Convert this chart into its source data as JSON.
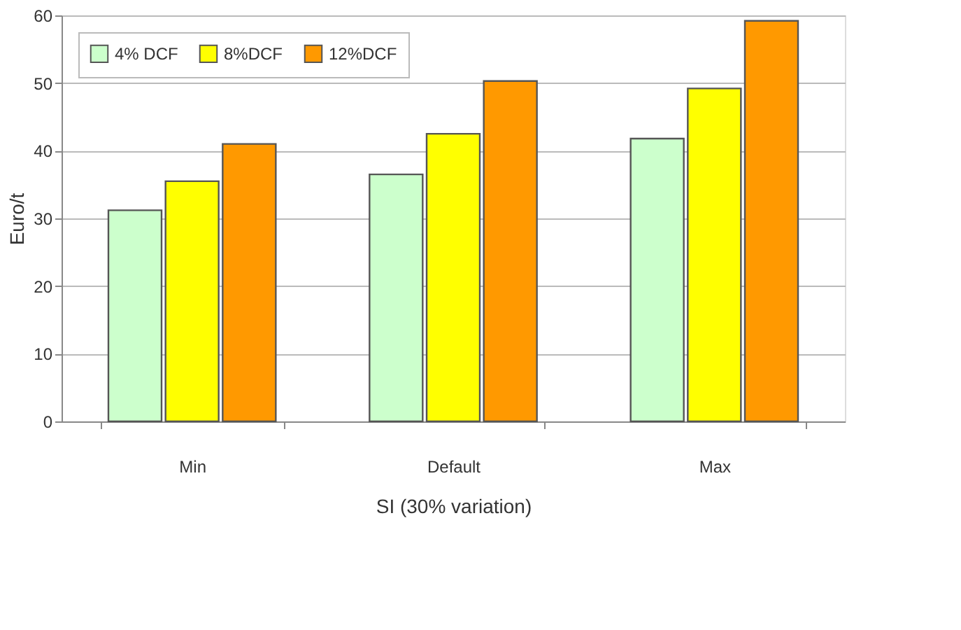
{
  "chart_data": {
    "type": "bar",
    "xlabel": "SI (30% variation)",
    "ylabel": "Euro/t",
    "categories": [
      "Min",
      "Default",
      "Max"
    ],
    "series": [
      {
        "name": "4% DCF",
        "color": "#ccffcc",
        "values": [
          31.2,
          36.5,
          41.8
        ]
      },
      {
        "name": "8%DCF",
        "color": "#ffff00",
        "values": [
          35.5,
          42.5,
          49.2
        ]
      },
      {
        "name": "12%DCF",
        "color": "#ff9900",
        "values": [
          41,
          50.3,
          59.2
        ]
      }
    ],
    "ylim": [
      0,
      60
    ],
    "yticks": [
      0,
      10,
      20,
      30,
      40,
      50,
      60
    ],
    "grid": "y",
    "legend": "top left"
  }
}
